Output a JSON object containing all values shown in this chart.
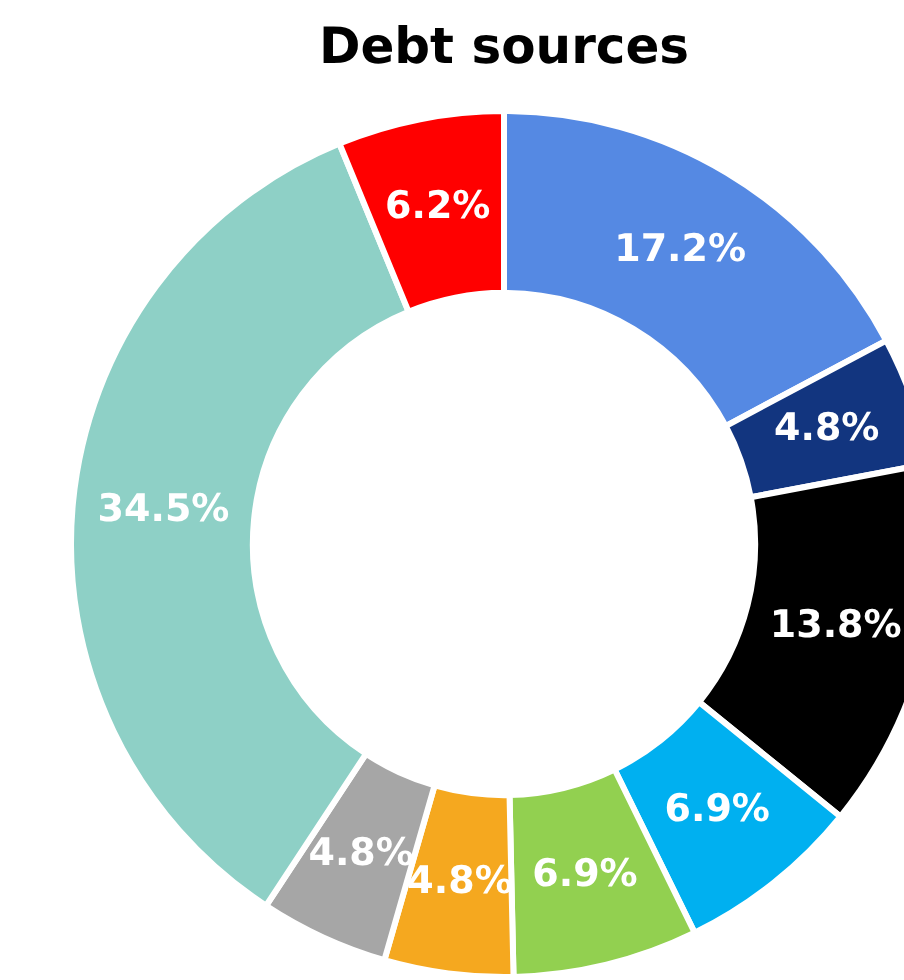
{
  "chart_data": {
    "type": "donut",
    "title": "Debt sources",
    "categories": [
      null,
      null,
      null,
      null,
      null,
      null,
      null,
      null,
      null
    ],
    "values": [
      17.2,
      4.8,
      13.8,
      6.9,
      6.9,
      4.8,
      4.8,
      34.5,
      6.2
    ],
    "value_labels": [
      "17.2%",
      "4.8%",
      "13.8%",
      "6.9%",
      "6.9%",
      "4.8%",
      "4.8%",
      "34.5%",
      "6.2%"
    ],
    "colors": [
      "#5589e3",
      "#12357f",
      "#000000",
      "#00b0f0",
      "#92d050",
      "#f5a81f",
      "#a6a6a6",
      "#8ed0c6",
      "#ff0000"
    ],
    "legend": false
  }
}
